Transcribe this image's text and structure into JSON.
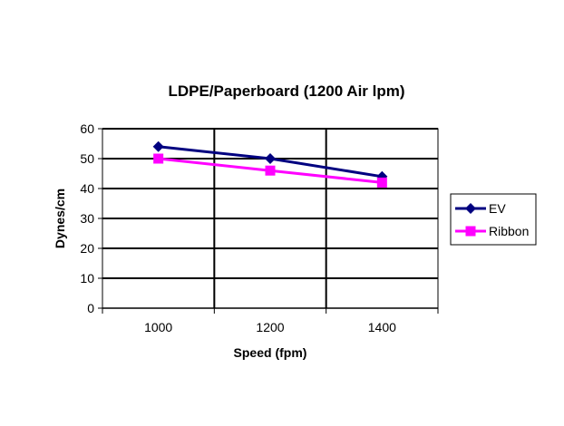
{
  "chart_data": {
    "type": "line",
    "title": "LDPE/Paperboard (1200 Air lpm)",
    "xlabel": "Speed (fpm)",
    "ylabel": "Dynes/cm",
    "categories": [
      "1000",
      "1200",
      "1400"
    ],
    "yticks": [
      "0",
      "10",
      "20",
      "30",
      "40",
      "50",
      "60"
    ],
    "ylim": [
      0,
      60
    ],
    "grid": true,
    "legend_position": "right",
    "series": [
      {
        "name": "EV",
        "values": [
          54,
          50,
          44
        ],
        "color": "#000080",
        "marker": "diamond"
      },
      {
        "name": "Ribbon",
        "values": [
          50,
          46,
          42
        ],
        "color": "#ff00ff",
        "marker": "square"
      }
    ]
  }
}
